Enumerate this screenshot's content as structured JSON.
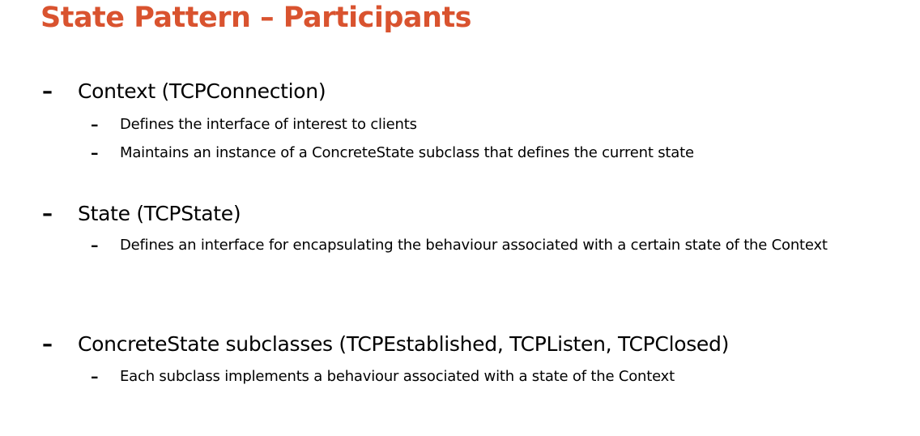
{
  "title": "State Pattern – Participants",
  "colors": {
    "title": "#d9532f",
    "text": "#000000",
    "background": "#ffffff"
  },
  "items": [
    {
      "bullet": "–",
      "label": "Context (TCPConnection)",
      "subitems": [
        {
          "bullet": "–",
          "text": "Defines the interface of interest to clients"
        },
        {
          "bullet": "–",
          "text": "Maintains an instance of a ConcreteState subclass that defines the current state"
        }
      ]
    },
    {
      "bullet": "–",
      "label": "State (TCPState)",
      "subitems": [
        {
          "bullet": "–",
          "text": "Defines an interface for encapsulating the behaviour associated with a certain state of the Context"
        }
      ]
    },
    {
      "bullet": "–",
      "label": "ConcreteState subclasses (TCPEstablished, TCPListen, TCPClosed)",
      "subitems": [
        {
          "bullet": "–",
          "text": "Each subclass implements a behaviour associated with a state of the Context"
        }
      ]
    }
  ]
}
